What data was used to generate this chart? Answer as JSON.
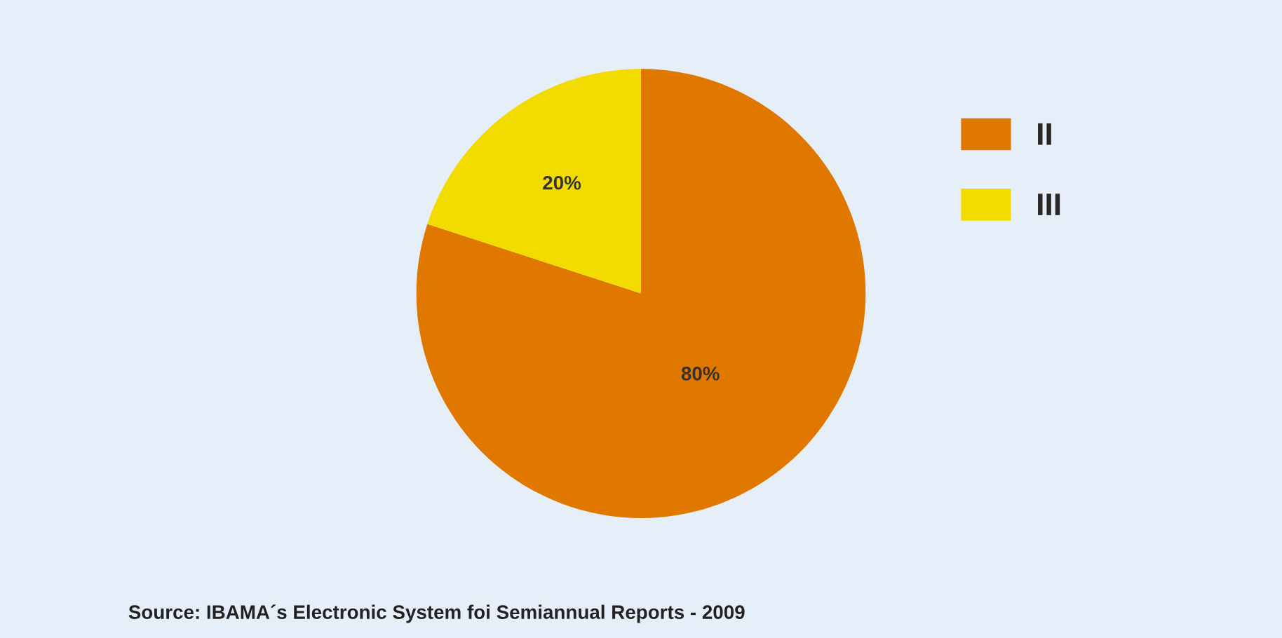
{
  "chart_data": {
    "type": "pie",
    "categories": [
      "II",
      "III"
    ],
    "values": [
      80,
      20
    ],
    "colors": [
      "#e07800",
      "#f2dc00"
    ],
    "value_labels": [
      "80%",
      "20%"
    ],
    "legend": "right",
    "annotations": [
      "Source: IBAMA´s Electronic System foi Semiannual Reports - 2009"
    ]
  }
}
